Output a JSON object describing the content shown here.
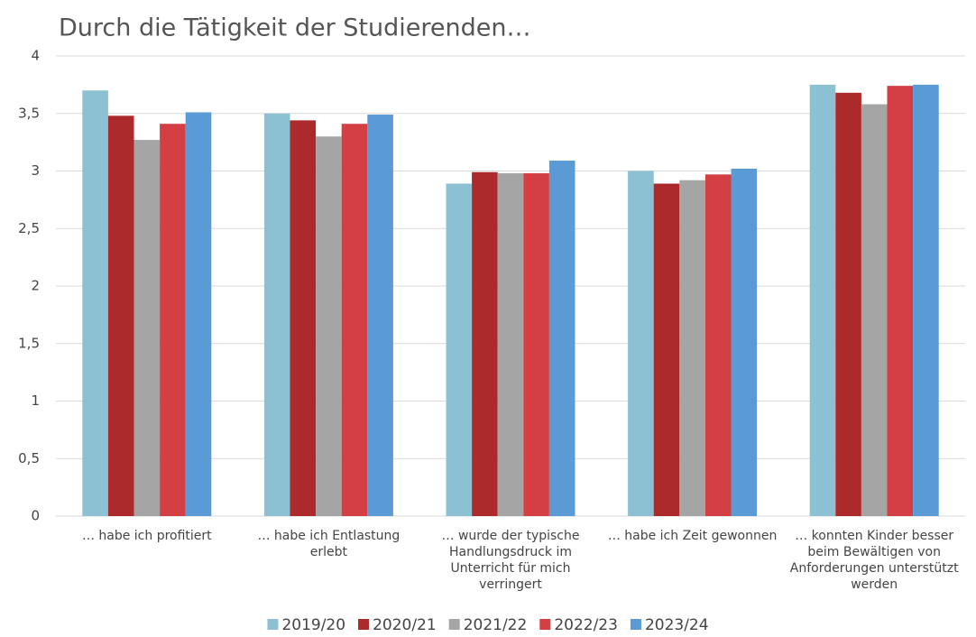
{
  "chart_data": {
    "type": "bar",
    "title": "Durch die Tätigkeit der Studierenden…",
    "categories": [
      "… habe ich profitiert",
      "… habe ich Entlastung erlebt",
      "… wurde der typische Handlungsdruck im Unterricht für mich verringert",
      "… habe ich Zeit gewonnen",
      "… konnten Kinder besser beim Bewältigen von Anforderungen unterstützt werden"
    ],
    "series": [
      {
        "name": "2019/20",
        "color": "#8bc1d2",
        "values": [
          3.7,
          3.5,
          2.89,
          3.0,
          3.75
        ]
      },
      {
        "name": "2020/21",
        "color": "#ac2a2b",
        "values": [
          3.48,
          3.44,
          2.99,
          2.89,
          3.68
        ]
      },
      {
        "name": "2021/22",
        "color": "#a5a5a5",
        "values": [
          3.27,
          3.3,
          2.98,
          2.92,
          3.58
        ]
      },
      {
        "name": "2022/23",
        "color": "#d33f42",
        "values": [
          3.41,
          3.41,
          2.98,
          2.97,
          3.74
        ]
      },
      {
        "name": "2023/24",
        "color": "#5b9bd5",
        "values": [
          3.51,
          3.49,
          3.09,
          3.02,
          3.75
        ]
      }
    ],
    "ylim": [
      0,
      4
    ],
    "yticks": [
      0,
      {
        "value": 0.5,
        "label": "0,5"
      },
      1,
      {
        "value": 1.5,
        "label": "1,5"
      },
      2,
      {
        "value": 2.5,
        "label": "2,5"
      },
      3,
      {
        "value": 3.5,
        "label": "3,5"
      },
      4
    ],
    "grid": true,
    "legend": "bottom"
  }
}
